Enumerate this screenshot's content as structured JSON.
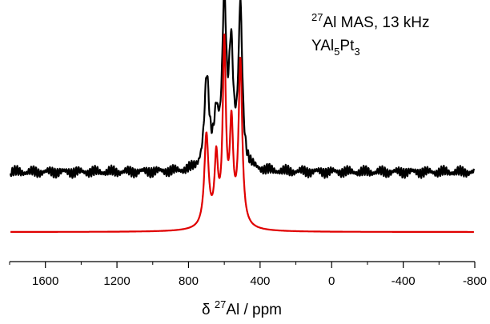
{
  "chart_data": {
    "type": "line",
    "xlabel_parts": {
      "symbol": "δ",
      "sup": "27",
      "rest": "Al / ppm"
    },
    "xlim": [
      1800,
      -800
    ],
    "x_reversed": true,
    "x_ticks": [
      1600,
      1200,
      800,
      400,
      0,
      -400,
      -800
    ],
    "x_tick_labels": [
      "1600",
      "1200",
      "800",
      "400",
      "0",
      "-400",
      "-800"
    ],
    "y_axis_shown": false,
    "grid": false,
    "legend": "none",
    "annotations": [
      {
        "parts": [
          {
            "sup": "27"
          },
          {
            "text": "Al MAS, 13 kHz"
          }
        ]
      },
      {
        "parts": [
          {
            "text": "YAl"
          },
          {
            "sub": "5"
          },
          {
            "text": "Pt"
          },
          {
            "sub": "3"
          }
        ]
      }
    ],
    "series": [
      {
        "color": "#000000",
        "role": "experimental",
        "baseline": 0,
        "noise_amplitude": 0.05,
        "noise_range": [
          1790,
          -790
        ],
        "peaks": [
          {
            "center": 698,
            "height": 0.83,
            "width": 16
          },
          {
            "center": 645,
            "height": 0.44,
            "width": 16
          },
          {
            "center": 600,
            "height": 1.5,
            "width": 13
          },
          {
            "center": 562,
            "height": 1.07,
            "width": 14
          },
          {
            "center": 510,
            "height": 1.48,
            "width": 13
          }
        ]
      },
      {
        "color": "#e00000",
        "role": "simulated",
        "baseline": -0.56,
        "peaks": [
          {
            "center": 700,
            "height": 0.85,
            "width": 14
          },
          {
            "center": 645,
            "height": 0.58,
            "width": 11
          },
          {
            "center": 600,
            "height": 1.63,
            "width": 10
          },
          {
            "center": 560,
            "height": 0.87,
            "width": 11
          },
          {
            "center": 510,
            "height": 1.53,
            "width": 12
          }
        ],
        "broad_component": {
          "center": 600,
          "height": 0.09,
          "width": 75
        }
      }
    ]
  },
  "colors": {
    "axis": "#000000",
    "experimental": "#000000",
    "simulated": "#e00000"
  }
}
